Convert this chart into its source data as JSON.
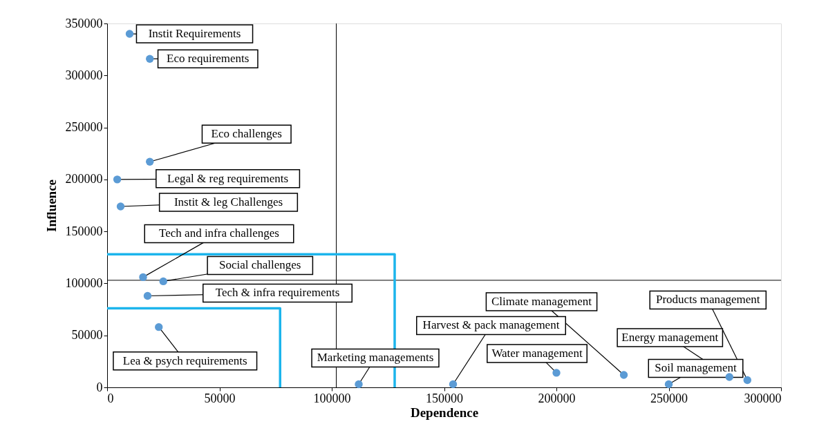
{
  "chart_data": {
    "type": "scatter",
    "xlabel": "Dependence",
    "ylabel": "Influence",
    "xlim": [
      0,
      300000
    ],
    "xticks": [
      0,
      50000,
      100000,
      150000,
      200000,
      250000,
      300000
    ],
    "ylim": [
      0,
      350000
    ],
    "yticks": [
      0,
      50000,
      100000,
      150000,
      200000,
      250000,
      300000,
      350000
    ],
    "grid": false,
    "series": [
      {
        "color": "#5b9bd5",
        "marker": "circle",
        "x": [
          10000,
          19000,
          19000,
          4500,
          6000,
          16000,
          25000,
          18000,
          23000,
          112000,
          154000,
          200000,
          230000,
          250000,
          277000,
          285000
        ],
        "values": [
          340000,
          316000,
          217000,
          200000,
          174000,
          106000,
          102000,
          88000,
          58000,
          3000,
          3000,
          14000,
          12000,
          3000,
          10000,
          7000
        ]
      },
      {
        "type": "line",
        "color": "#1cb5ec",
        "x": [
          0,
          128000,
          128000
        ],
        "values": [
          128000,
          128000,
          0
        ]
      },
      {
        "type": "line",
        "color": "#1cb5ec",
        "x": [
          0,
          77000,
          77000
        ],
        "values": [
          76000,
          76000,
          0
        ]
      }
    ],
    "ref_lines": [
      {
        "axis": "x",
        "value": 102000,
        "color": "#000000"
      },
      {
        "axis": "y",
        "value": 103000,
        "color": "#000000"
      }
    ],
    "annotations": [
      {
        "text": "Instit Requirements",
        "x": 10000,
        "y": 340000
      },
      {
        "text": "Eco requirements",
        "x": 19000,
        "y": 316000
      },
      {
        "text": "Eco challenges",
        "x": 19000,
        "y": 217000
      },
      {
        "text": "Legal & reg requirements",
        "x": 4500,
        "y": 200000
      },
      {
        "text": "Instit & leg Challenges",
        "x": 6000,
        "y": 174000
      },
      {
        "text": "Tech and infra challenges",
        "x": 16000,
        "y": 106000
      },
      {
        "text": "Social challenges",
        "x": 25000,
        "y": 102000
      },
      {
        "text": "Tech & infra requirements",
        "x": 18000,
        "y": 88000
      },
      {
        "text": "Lea & psych requirements",
        "x": 23000,
        "y": 58000
      },
      {
        "text": "Marketing managements",
        "x": 112000,
        "y": 3000
      },
      {
        "text": "Harvest & pack management",
        "x": 154000,
        "y": 3000
      },
      {
        "text": "Water management",
        "x": 200000,
        "y": 14000
      },
      {
        "text": "Climate management",
        "x": 230000,
        "y": 12000
      },
      {
        "text": "Soil management",
        "x": 250000,
        "y": 3000
      },
      {
        "text": "Energy management",
        "x": 277000,
        "y": 10000
      },
      {
        "text": "Products management",
        "x": 285000,
        "y": 7000
      }
    ]
  }
}
